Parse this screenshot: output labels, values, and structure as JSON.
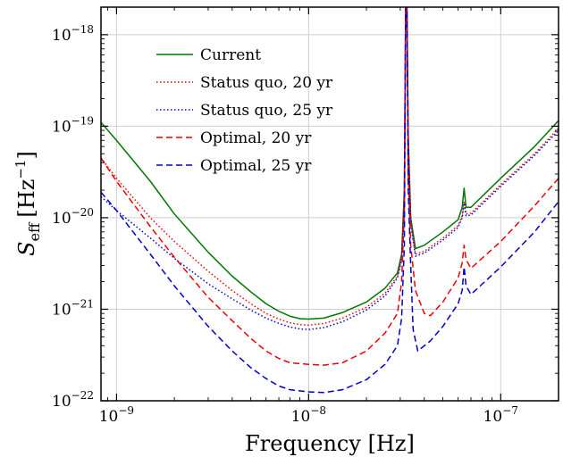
{
  "chart_data": {
    "type": "line",
    "title": "",
    "xlabel": "Frequency [Hz]",
    "ylabel": {
      "main": "S",
      "sub": "eff",
      "units": "[Hz",
      "exp": "−1",
      "close": "]"
    },
    "xscale": "log",
    "yscale": "log",
    "xlim": [
      8.3e-10,
      2e-07
    ],
    "ylim": [
      1e-22,
      2e-18
    ],
    "grid": true,
    "legend_position": "top-left",
    "x_ticks": [
      {
        "value": 1e-09,
        "base": "10",
        "exp": "−9"
      },
      {
        "value": 1e-08,
        "base": "10",
        "exp": "−8"
      },
      {
        "value": 1e-07,
        "base": "10",
        "exp": "−7"
      }
    ],
    "y_ticks": [
      {
        "value": 1e-22,
        "base": "10",
        "exp": "−22"
      },
      {
        "value": 1e-21,
        "base": "10",
        "exp": "−21"
      },
      {
        "value": 1e-20,
        "base": "10",
        "exp": "−20"
      },
      {
        "value": 1e-19,
        "base": "10",
        "exp": "−19"
      },
      {
        "value": 1e-18,
        "base": "10",
        "exp": "−18"
      }
    ],
    "series": [
      {
        "name": "Current",
        "color": "#007700",
        "style": "solid",
        "points": [
          [
            8.3e-10,
            1.1e-19
          ],
          [
            1e-09,
            7e-20
          ],
          [
            1.5e-09,
            2.5e-20
          ],
          [
            2e-09,
            1.1e-20
          ],
          [
            3e-09,
            4.2e-21
          ],
          [
            4e-09,
            2.3e-21
          ],
          [
            5e-09,
            1.55e-21
          ],
          [
            6e-09,
            1.15e-21
          ],
          [
            7e-09,
            9.5e-22
          ],
          [
            8e-09,
            8.4e-22
          ],
          [
            9e-09,
            7.9e-22
          ],
          [
            1e-08,
            7.8e-22
          ],
          [
            1.2e-08,
            8e-22
          ],
          [
            1.5e-08,
            9.2e-22
          ],
          [
            2e-08,
            1.2e-21
          ],
          [
            2.5e-08,
            1.7e-21
          ],
          [
            2.9e-08,
            2.5e-21
          ],
          [
            3.05e-08,
            4e-21
          ],
          [
            3.15e-08,
            2e-20
          ],
          [
            3.2e-08,
            2e-18
          ],
          [
            3.25e-08,
            2e-18
          ],
          [
            3.3e-08,
            8e-20
          ],
          [
            3.4e-08,
            1e-20
          ],
          [
            3.6e-08,
            4.6e-21
          ],
          [
            4e-08,
            5e-21
          ],
          [
            5e-08,
            7e-21
          ],
          [
            6e-08,
            9.5e-21
          ],
          [
            6.3e-08,
            1.3e-20
          ],
          [
            6.45e-08,
            2.1e-20
          ],
          [
            6.6e-08,
            1.3e-20
          ],
          [
            7e-08,
            1.3e-20
          ],
          [
            1e-07,
            2.7e-20
          ],
          [
            1.5e-07,
            6e-20
          ],
          [
            2e-07,
            1.15e-19
          ]
        ]
      },
      {
        "name": "Status quo, 20 yr",
        "color": "#ee0000",
        "style": "dotted",
        "points": [
          [
            8.3e-10,
            4.5e-20
          ],
          [
            1e-09,
            2.7e-20
          ],
          [
            1.5e-09,
            1e-20
          ],
          [
            2e-09,
            5.5e-21
          ],
          [
            3e-09,
            2.6e-21
          ],
          [
            4e-09,
            1.6e-21
          ],
          [
            5e-09,
            1.15e-21
          ],
          [
            6e-09,
            9e-22
          ],
          [
            7e-09,
            7.8e-22
          ],
          [
            8e-09,
            7.1e-22
          ],
          [
            9e-09,
            6.8e-22
          ],
          [
            1e-08,
            6.7e-22
          ],
          [
            1.2e-08,
            7e-22
          ],
          [
            1.5e-08,
            8e-22
          ],
          [
            2e-08,
            1.05e-21
          ],
          [
            2.5e-08,
            1.5e-21
          ],
          [
            2.9e-08,
            2.3e-21
          ],
          [
            3.05e-08,
            3.6e-21
          ],
          [
            3.15e-08,
            1.8e-20
          ],
          [
            3.2e-08,
            2e-18
          ],
          [
            3.25e-08,
            2e-18
          ],
          [
            3.3e-08,
            7e-20
          ],
          [
            3.4e-08,
            9e-21
          ],
          [
            3.6e-08,
            4e-21
          ],
          [
            4e-08,
            4.3e-21
          ],
          [
            5e-08,
            6e-21
          ],
          [
            6e-08,
            8.2e-21
          ],
          [
            6.3e-08,
            1.05e-20
          ],
          [
            6.45e-08,
            1.5e-20
          ],
          [
            6.6e-08,
            1.1e-20
          ],
          [
            7e-08,
            1.12e-20
          ],
          [
            1e-07,
            2.3e-20
          ],
          [
            1.5e-07,
            5e-20
          ],
          [
            2e-07,
            9.5e-20
          ]
        ]
      },
      {
        "name": "Status quo, 25 yr",
        "color": "#0000cc",
        "style": "dotted",
        "points": [
          [
            8.3e-10,
            1.7e-20
          ],
          [
            1e-09,
            1.2e-20
          ],
          [
            1.5e-09,
            6e-21
          ],
          [
            2e-09,
            3.6e-21
          ],
          [
            3e-09,
            1.9e-21
          ],
          [
            4e-09,
            1.3e-21
          ],
          [
            5e-09,
            9.8e-22
          ],
          [
            6e-09,
            8e-22
          ],
          [
            7e-09,
            7e-22
          ],
          [
            8e-09,
            6.4e-22
          ],
          [
            9e-09,
            6.1e-22
          ],
          [
            1e-08,
            6e-22
          ],
          [
            1.2e-08,
            6.3e-22
          ],
          [
            1.5e-08,
            7.3e-22
          ],
          [
            2e-08,
            9.8e-22
          ],
          [
            2.5e-08,
            1.4e-21
          ],
          [
            2.9e-08,
            2.2e-21
          ],
          [
            3.05e-08,
            3.4e-21
          ],
          [
            3.15e-08,
            1.7e-20
          ],
          [
            3.2e-08,
            2e-18
          ],
          [
            3.25e-08,
            2e-18
          ],
          [
            3.3e-08,
            6.5e-20
          ],
          [
            3.4e-08,
            8.5e-21
          ],
          [
            3.6e-08,
            3.8e-21
          ],
          [
            4e-08,
            4.1e-21
          ],
          [
            5e-08,
            5.7e-21
          ],
          [
            6e-08,
            7.8e-21
          ],
          [
            6.3e-08,
            1e-20
          ],
          [
            6.45e-08,
            1.45e-20
          ],
          [
            6.6e-08,
            1.05e-20
          ],
          [
            7e-08,
            1.07e-20
          ],
          [
            1e-07,
            2.2e-20
          ],
          [
            1.5e-07,
            4.8e-20
          ],
          [
            2e-07,
            9e-20
          ]
        ]
      },
      {
        "name": "Optimal, 20 yr",
        "color": "#ee0000",
        "style": "dashed",
        "points": [
          [
            8.3e-10,
            4.5e-20
          ],
          [
            1e-09,
            2.5e-20
          ],
          [
            1.5e-09,
            8e-21
          ],
          [
            2e-09,
            3.7e-21
          ],
          [
            3e-09,
            1.35e-21
          ],
          [
            4e-09,
            7.5e-22
          ],
          [
            5e-09,
            4.8e-22
          ],
          [
            6e-09,
            3.5e-22
          ],
          [
            7e-09,
            2.9e-22
          ],
          [
            8e-09,
            2.6e-22
          ],
          [
            1e-08,
            2.5e-22
          ],
          [
            1.2e-08,
            2.45e-22
          ],
          [
            1.5e-08,
            2.6e-22
          ],
          [
            2e-08,
            3.5e-22
          ],
          [
            2.5e-08,
            5.5e-22
          ],
          [
            2.9e-08,
            9e-22
          ],
          [
            3.05e-08,
            2e-21
          ],
          [
            3.15e-08,
            1.2e-20
          ],
          [
            3.2e-08,
            2e-18
          ],
          [
            3.25e-08,
            2e-18
          ],
          [
            3.3e-08,
            3e-20
          ],
          [
            3.4e-08,
            5e-21
          ],
          [
            3.6e-08,
            1.6e-21
          ],
          [
            4e-08,
            9e-22
          ],
          [
            4.3e-08,
            8.5e-22
          ],
          [
            5e-08,
            1.2e-21
          ],
          [
            6e-08,
            2.2e-21
          ],
          [
            6.3e-08,
            3.2e-21
          ],
          [
            6.45e-08,
            5e-21
          ],
          [
            6.6e-08,
            3.5e-21
          ],
          [
            7e-08,
            2.8e-21
          ],
          [
            1e-07,
            5.5e-21
          ],
          [
            1.5e-07,
            1.35e-20
          ],
          [
            2e-07,
            2.7e-20
          ]
        ]
      },
      {
        "name": "Optimal, 25 yr",
        "color": "#0000cc",
        "style": "dashed",
        "points": [
          [
            8.3e-10,
            1.9e-20
          ],
          [
            1e-09,
            1.2e-20
          ],
          [
            1.5e-09,
            4e-21
          ],
          [
            2e-09,
            1.8e-21
          ],
          [
            3e-09,
            6.5e-22
          ],
          [
            4e-09,
            3.5e-22
          ],
          [
            5e-09,
            2.3e-22
          ],
          [
            6e-09,
            1.75e-22
          ],
          [
            7e-09,
            1.45e-22
          ],
          [
            8e-09,
            1.32e-22
          ],
          [
            1e-08,
            1.25e-22
          ],
          [
            1.2e-08,
            1.23e-22
          ],
          [
            1.5e-08,
            1.32e-22
          ],
          [
            2e-08,
            1.7e-22
          ],
          [
            2.5e-08,
            2.5e-22
          ],
          [
            2.9e-08,
            4e-22
          ],
          [
            3.05e-08,
            8e-22
          ],
          [
            3.15e-08,
            5e-21
          ],
          [
            3.2e-08,
            2e-18
          ],
          [
            3.25e-08,
            2e-18
          ],
          [
            3.3e-08,
            2e-20
          ],
          [
            3.4e-08,
            3e-21
          ],
          [
            3.5e-08,
            6e-22
          ],
          [
            3.7e-08,
            3.5e-22
          ],
          [
            4.3e-08,
            4.5e-22
          ],
          [
            5e-08,
            6.5e-22
          ],
          [
            6e-08,
            1.15e-21
          ],
          [
            6.3e-08,
            1.6e-21
          ],
          [
            6.45e-08,
            2.9e-21
          ],
          [
            6.6e-08,
            1.8e-21
          ],
          [
            7e-08,
            1.45e-21
          ],
          [
            1e-07,
            2.9e-21
          ],
          [
            1.5e-07,
            7e-21
          ],
          [
            2e-07,
            1.5e-20
          ]
        ]
      }
    ]
  }
}
